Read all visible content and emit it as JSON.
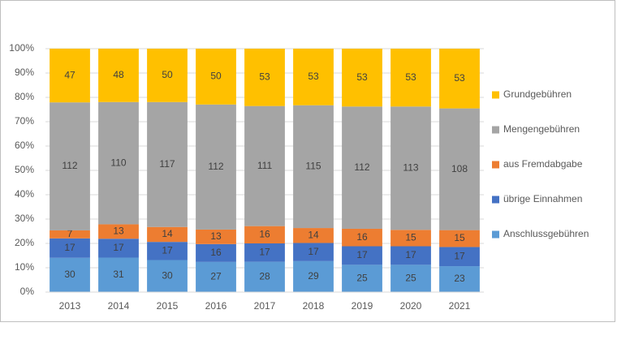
{
  "chart_data": {
    "type": "bar",
    "stacking": "percent",
    "categories": [
      "2013",
      "2014",
      "2015",
      "2016",
      "2017",
      "2018",
      "2019",
      "2020",
      "2021"
    ],
    "series": [
      {
        "name": "Anschlussgebühren",
        "color": "#5b9bd5",
        "values": [
          30,
          31,
          30,
          27,
          28,
          29,
          25,
          25,
          23
        ]
      },
      {
        "name": "übrige Einnahmen",
        "color": "#4472c4",
        "values": [
          17,
          17,
          17,
          16,
          17,
          17,
          17,
          17,
          17
        ]
      },
      {
        "name": "aus Fremdabgabe",
        "color": "#ed7d31",
        "values": [
          7,
          13,
          14,
          13,
          16,
          14,
          16,
          15,
          15
        ]
      },
      {
        "name": "Mengengebühren",
        "color": "#a5a5a5",
        "values": [
          112,
          110,
          117,
          112,
          111,
          115,
          112,
          113,
          108
        ]
      },
      {
        "name": "Grundgebühren",
        "color": "#ffc000",
        "values": [
          47,
          48,
          50,
          50,
          53,
          53,
          53,
          53,
          53
        ]
      }
    ],
    "ylim": [
      0,
      100
    ],
    "yticks": [
      {
        "value": 0,
        "label": "0%"
      },
      {
        "value": 10,
        "label": "10%"
      },
      {
        "value": 20,
        "label": "20%"
      },
      {
        "value": 30,
        "label": "30%"
      },
      {
        "value": 40,
        "label": "40%"
      },
      {
        "value": 50,
        "label": "50%"
      },
      {
        "value": 60,
        "label": "60%"
      },
      {
        "value": 70,
        "label": "70%"
      },
      {
        "value": 80,
        "label": "80%"
      },
      {
        "value": 90,
        "label": "90%"
      },
      {
        "value": 100,
        "label": "100%"
      }
    ],
    "grid": true,
    "legend": "right",
    "data_labels": true
  }
}
